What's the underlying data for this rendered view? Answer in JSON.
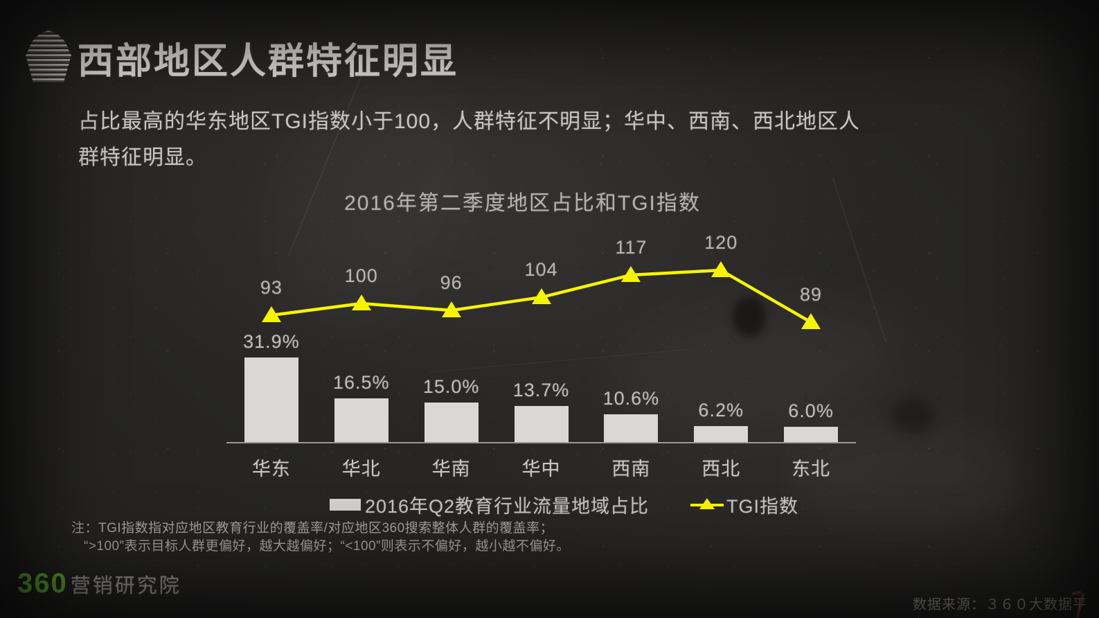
{
  "header": {
    "title": "西部地区人群特征明显"
  },
  "icons": {
    "title_icon": "chalk-cupcake-icon",
    "legend_line_marker": "triangle-line-marker-icon"
  },
  "intro": {
    "text": "占比最高的华东地区TGI指数小于100，人群特征不明显；华中、西南、西北地区人\n群特征明显。"
  },
  "chart_data": {
    "type": "bar+line",
    "title": "2016年第二季度地区占比和TGI指数",
    "categories": [
      "华东",
      "华北",
      "华南",
      "华中",
      "西南",
      "西北",
      "东北"
    ],
    "series": [
      {
        "name": "2016年Q2教育行业流量地域占比",
        "type": "bar",
        "unit": "%",
        "values": [
          31.9,
          16.5,
          15.0,
          13.7,
          10.6,
          6.2,
          6.0
        ],
        "value_labels": [
          "31.9%",
          "16.5%",
          "15.0%",
          "13.7%",
          "10.6%",
          "6.2%",
          "6.0%"
        ],
        "color": "#d9d8d6"
      },
      {
        "name": "TGI指数",
        "type": "line",
        "values": [
          93,
          100,
          96,
          104,
          117,
          120,
          89
        ],
        "value_labels": [
          "93",
          "100",
          "96",
          "104",
          "117",
          "120",
          "89"
        ],
        "color": "#f7f400",
        "marker": "triangle"
      }
    ],
    "ylim_bar": [
      0,
      35
    ],
    "ylim_line": [
      0,
      130
    ],
    "grid": false,
    "legend_position": "bottom"
  },
  "note": {
    "line1": "注：TGI指数指对应地区教育行业的覆盖率/对应地区360搜索整体人群的覆盖率；",
    "line2": "“>100”表示目标人群更偏好，越大越偏好；“<100”则表示不偏好，越小越不偏好。"
  },
  "footer": {
    "brand_number": "360",
    "brand_suffix": "营销研究院",
    "source": "数据来源：３６０大数据平台"
  },
  "colors": {
    "background": "#242322",
    "bar": "#d9d8d6",
    "line": "#f7f400",
    "brand_green": "#61b32d",
    "chalk_text": "#d9d7d3"
  }
}
